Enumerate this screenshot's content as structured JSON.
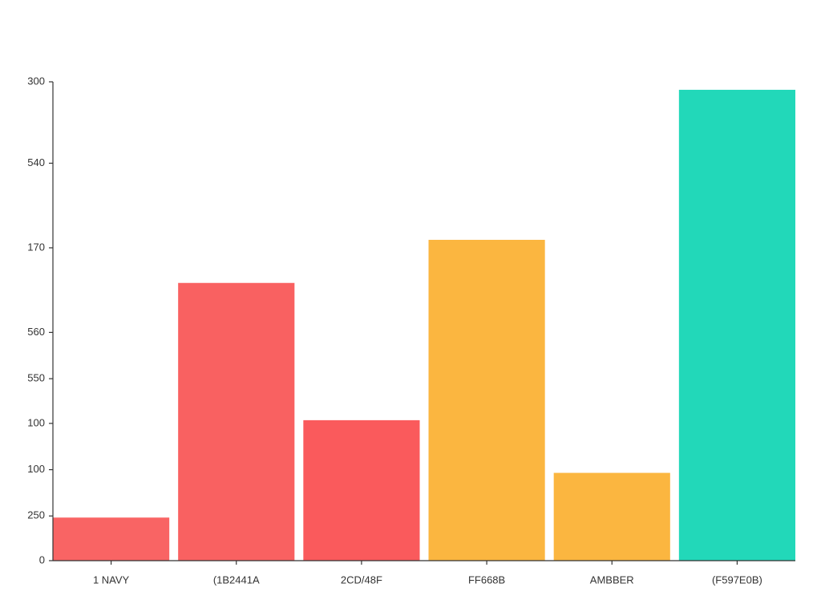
{
  "chart_data": {
    "type": "bar",
    "categories": [
      "1 NAVY",
      "(1B2441A",
      "2CD/48F",
      "FF668B",
      "AMBBER",
      "(F597E0B)"
    ],
    "values": [
      27,
      174,
      88,
      201,
      55,
      295
    ],
    "colors": [
      "#f96464",
      "#f96161",
      "#fa5a5c",
      "#fbb640",
      "#fbb640",
      "#22d8b9"
    ],
    "ylim": [
      0,
      300
    ],
    "yticks": [
      0,
      {
        "value": 28,
        "label": "250"
      },
      {
        "value": 57,
        "label": "100"
      },
      {
        "value": 86,
        "label": "100"
      },
      {
        "value": 114,
        "label": "550"
      },
      {
        "value": 143,
        "label": "560"
      },
      {
        "value": 196,
        "label": "170"
      },
      {
        "value": 249,
        "label": "540"
      },
      300
    ],
    "grid": false
  }
}
